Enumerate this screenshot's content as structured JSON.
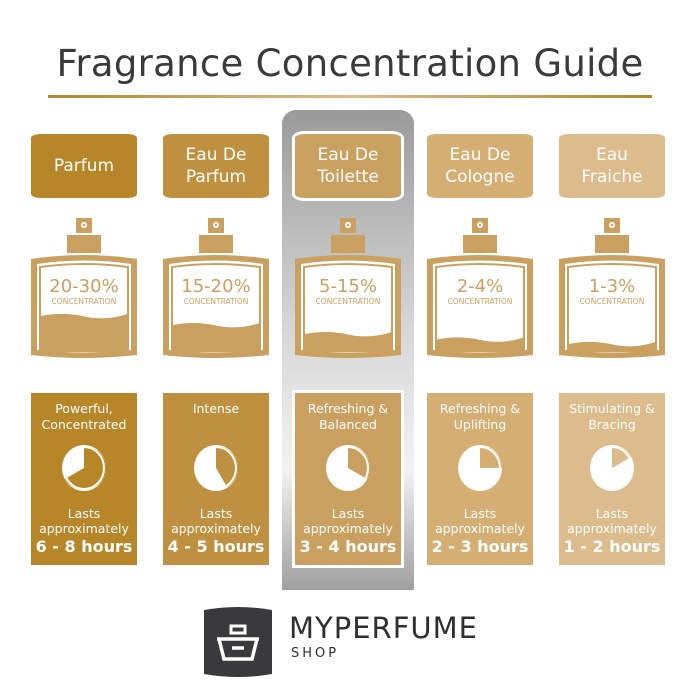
{
  "title": "Fragrance Concentration Guide",
  "columns": [
    {
      "name_line1": "Parfum",
      "name_line2": "",
      "concentration": "20-30%",
      "concentration_label": "CONCENTRATION",
      "character_line1": "Powerful,",
      "character_line2": "Concentrated",
      "lasts_line1": "Lasts",
      "lasts_line2": "approximately",
      "duration": "6 - 8 hours",
      "pie_hours": 8,
      "fill_level": 0.7,
      "color": "#b68628",
      "highlighted": false
    },
    {
      "name_line1": "Eau De",
      "name_line2": "Parfum",
      "concentration": "15-20%",
      "concentration_label": "CONCENTRATION",
      "character_line1": "Intense",
      "character_line2": "",
      "lasts_line1": "Lasts",
      "lasts_line2": "approximately",
      "duration": "4 - 5 hours",
      "pie_hours": 5,
      "fill_level": 0.5,
      "color": "#bf9040",
      "highlighted": false
    },
    {
      "name_line1": "Eau De",
      "name_line2": "Toilette",
      "concentration": "5-15%",
      "concentration_label": "CONCENTRATION",
      "character_line1": "Refreshing &",
      "character_line2": "Balanced",
      "lasts_line1": "Lasts",
      "lasts_line2": "approximately",
      "duration": "3 - 4 hours",
      "pie_hours": 4,
      "fill_level": 0.3,
      "color": "#c9a060",
      "highlighted": true
    },
    {
      "name_line1": "Eau De",
      "name_line2": "Cologne",
      "concentration": "2-4%",
      "concentration_label": "CONCENTRATION",
      "character_line1": "Refreshing &",
      "character_line2": "Uplifting",
      "lasts_line1": "Lasts",
      "lasts_line2": "approximately",
      "duration": "2 - 3 hours",
      "pie_hours": 3,
      "fill_level": 0.18,
      "color": "#d5ae74",
      "highlighted": false
    },
    {
      "name_line1": "Eau",
      "name_line2": "Fraiche",
      "concentration": "1-3%",
      "concentration_label": "CONCENTRATION",
      "character_line1": "Stimulating &",
      "character_line2": "Bracing",
      "lasts_line1": "Lasts",
      "lasts_line2": "approximately",
      "duration": "1 - 2 hours",
      "pie_hours": 2,
      "fill_level": 0.08,
      "color": "#dcbc8c",
      "highlighted": false
    }
  ],
  "bottle_color": "#c9a060",
  "brand": {
    "name": "MYPERFUME",
    "sub": "SHOP",
    "logo_color": "#3a3a3c"
  }
}
